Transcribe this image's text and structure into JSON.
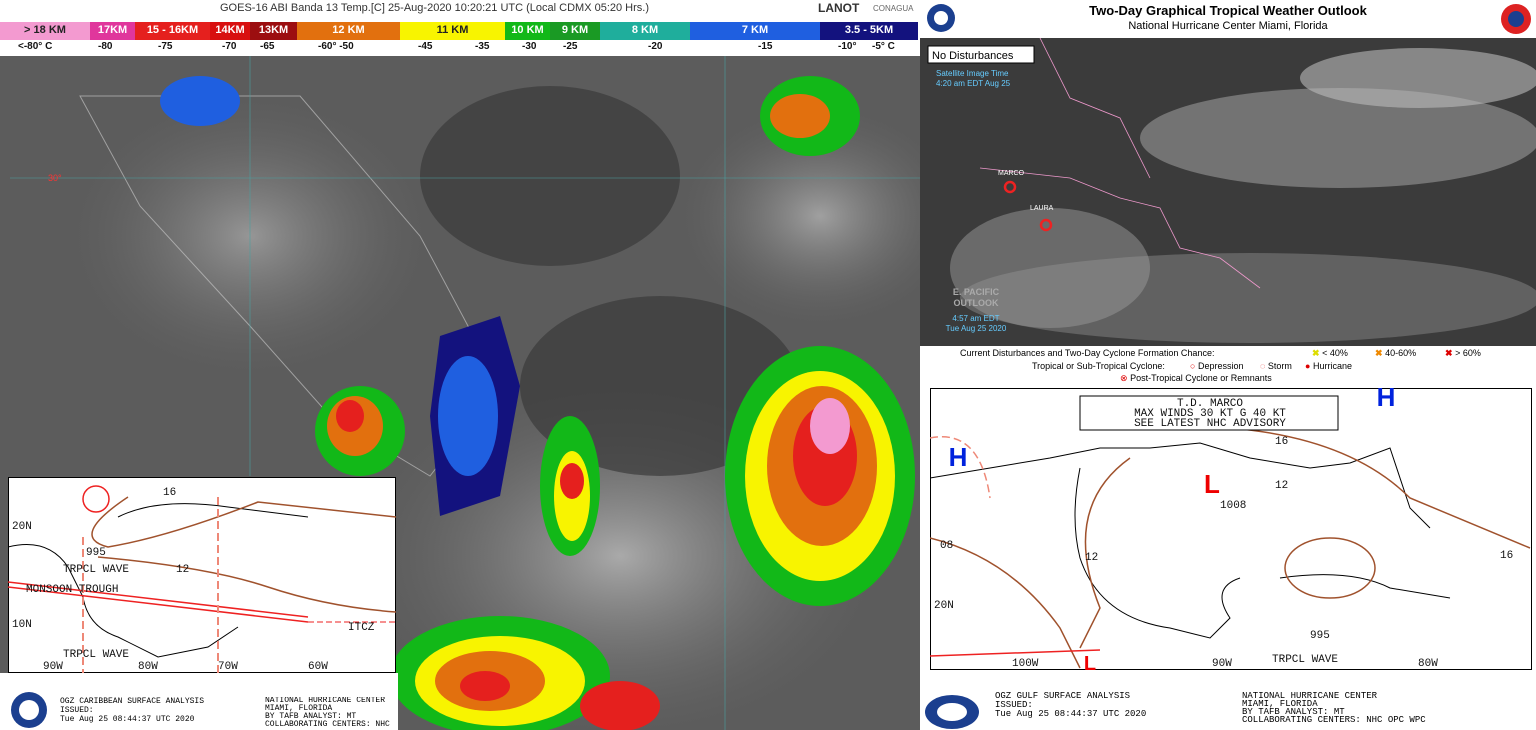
{
  "satellite": {
    "title": "GOES-16 ABI Banda 13 Temp.[C] 25-Aug-2020 10:20:21 UTC (Local CDMX  05:20 Hrs.)",
    "logo_left": "LANOT",
    "logo_right": "CONAGUA",
    "scale": [
      {
        "label": "> 18 KM",
        "color": "#f39ad0"
      },
      {
        "label": "17KM",
        "color": "#e0369c"
      },
      {
        "label": "15 - 16KM",
        "color": "#e5201e"
      },
      {
        "label": "14KM",
        "color": "#d81010"
      },
      {
        "label": "13KM",
        "color": "#9c0e10"
      },
      {
        "label": "12 KM",
        "color": "#e2700e"
      },
      {
        "label": "11 KM",
        "color": "#f8f400"
      },
      {
        "label": "10 KM",
        "color": "#12b818"
      },
      {
        "label": "9 KM",
        "color": "#1a9a24"
      },
      {
        "label": "8 KM",
        "color": "#1fae9c"
      },
      {
        "label": "7 KM",
        "color": "#1f5fe0"
      },
      {
        "label": "3.5 - 5KM",
        "color": "#13127e"
      }
    ],
    "temps": [
      "<-80° C",
      "-80",
      "-75",
      "-70",
      "-65",
      "-60° -50",
      "-45",
      "-35",
      "-30",
      "-25",
      "-20",
      "-15",
      "-10°",
      "-5° C"
    ],
    "lat_label": "30°"
  },
  "caribbean": {
    "labels": [
      "16",
      "995",
      "12",
      "TRPCL WAVE",
      "MONSOON TROUGH",
      "ITCZ",
      "20N",
      "10N",
      "90W",
      "80W",
      "70W",
      "60W",
      "TRPCL WAVE"
    ],
    "footer_left": [
      "OGZ CARIBBEAN SURFACE ANALYSIS",
      "ISSUED:",
      "Tue Aug 25 08:44:37 UTC 2020"
    ],
    "footer_right": [
      "NATIONAL HURRICANE CENTER",
      "MIAMI, FLORIDA",
      "BY TAFB ANALYST: MT",
      "COLLABORATING CENTERS: NHC"
    ]
  },
  "outlook": {
    "title": "Two-Day Graphical Tropical Weather Outlook",
    "subtitle": "National Hurricane Center  Miami, Florida",
    "status": "No Disturbances",
    "image_time": [
      "Satellite Image Time",
      "4:20 am EDT Aug 25"
    ],
    "storms": [
      "MARCO",
      "LAURA"
    ],
    "pacific": [
      "E. PACIFIC",
      "OUTLOOK"
    ],
    "pacific_time": [
      "4:57 am EDT",
      "Tue Aug 25 2020"
    ],
    "legend_line1": "Current Disturbances and Two-Day Cyclone Formation Chance:",
    "chances": [
      "< 40%",
      "40-60%",
      "> 60%"
    ],
    "legend_line2": "Tropical or Sub-Tropical Cyclone:",
    "cyclones": [
      "Depression",
      "Storm",
      "Hurricane"
    ],
    "legend_line3": "Post-Tropical Cyclone or Remnants"
  },
  "gulf": {
    "advisory": [
      "T.D. MARCO",
      "MAX WINDS 30 KT G 40 KT",
      "SEE LATEST NHC ADVISORY"
    ],
    "labels": [
      "H",
      "H",
      "L",
      "L",
      "1008",
      "16",
      "12",
      "08",
      "12",
      "995",
      "16",
      "TRPCL WAVE",
      "20N",
      "100W",
      "90W",
      "80W"
    ],
    "footer_left": [
      "OGZ GULF SURFACE ANALYSIS",
      "ISSUED:",
      "Tue Aug 25 08:44:37 UTC 2020"
    ],
    "footer_right": [
      "NATIONAL HURRICANE CENTER",
      "MIAMI, FLORIDA",
      "BY TAFB ANALYST: MT",
      "COLLABORATING CENTERS: NHC OPC WPC"
    ]
  }
}
